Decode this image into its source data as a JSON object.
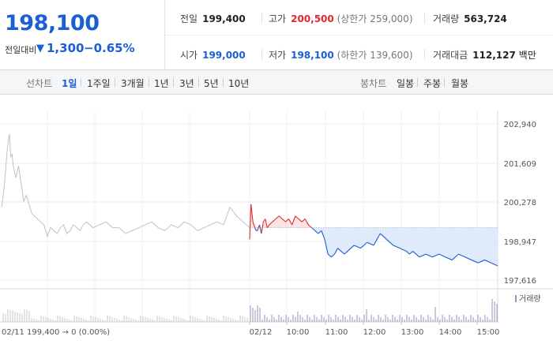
{
  "summary": {
    "price": "198,100",
    "change_label": "전일대비",
    "change_arrow": "▼",
    "change_value": "1,300",
    "change_rate": "−0.65%"
  },
  "stats": {
    "prev_close": {
      "label": "전일",
      "value": "199,400"
    },
    "high": {
      "label": "고가",
      "value": "200,500",
      "sub": "(상한가 259,000)"
    },
    "volume": {
      "label": "거래량",
      "value": "563,724"
    },
    "open": {
      "label": "시가",
      "value": "199,000"
    },
    "low": {
      "label": "저가",
      "value": "198,100",
      "sub": "(하한가 139,600)"
    },
    "amount": {
      "label": "거래대금",
      "value": "112,127",
      "unit": "백만"
    }
  },
  "line_tabs": {
    "label": "선차트",
    "items": [
      "1일",
      "1주일",
      "3개월",
      "1년",
      "3년",
      "5년",
      "10년"
    ],
    "active": "1일"
  },
  "candle_tabs": {
    "label": "봉차트",
    "items": [
      "일봉",
      "주봉",
      "월봉"
    ]
  },
  "colors": {
    "up": "#e2282e",
    "down": "#1b5fd6",
    "prev_day": "#c2c2c2",
    "volume": "#9a93b8"
  },
  "chart_data": {
    "type": "line",
    "y_ticks": [
      "202,940",
      "201,609",
      "200,278",
      "198,947",
      "197,616"
    ],
    "ylim": [
      197616,
      202940
    ],
    "reference_price": 199400,
    "prev_day_label": "02/11  199,400 → 0 (0.00%)",
    "x_ticks": [
      "02/12",
      "10:00",
      "11:00",
      "12:00",
      "13:00",
      "14:00",
      "15:00"
    ],
    "volume_legend": "거래량",
    "series": [
      {
        "segment": "prev_day",
        "x": [
          "09:00",
          "09:02",
          "09:04",
          "09:06",
          "09:08",
          "09:10",
          "09:12",
          "09:14",
          "09:16",
          "09:18",
          "09:20",
          "09:22",
          "09:24",
          "09:26",
          "09:30",
          "09:34",
          "09:38",
          "09:42",
          "09:46",
          "09:50",
          "09:55",
          "10:00",
          "10:05",
          "10:10",
          "10:15",
          "10:20",
          "10:25",
          "10:30",
          "10:35",
          "10:40",
          "10:45",
          "10:50",
          "10:55",
          "11:00",
          "11:05",
          "11:10",
          "11:20",
          "11:30",
          "11:40",
          "11:50",
          "12:00",
          "12:10",
          "12:20",
          "12:30",
          "12:40",
          "12:50",
          "13:00",
          "13:10",
          "13:20",
          "13:30",
          "13:40",
          "13:50",
          "14:00",
          "14:10",
          "14:20",
          "14:30",
          "14:40",
          "14:50",
          "15:00",
          "15:10",
          "15:20"
        ],
        "y": [
          200100,
          200400,
          200800,
          201300,
          201900,
          202300,
          202600,
          201800,
          201900,
          201500,
          201300,
          201100,
          201300,
          201500,
          200900,
          200300,
          200500,
          200200,
          199900,
          199800,
          199700,
          199600,
          199500,
          199100,
          199400,
          199300,
          199200,
          199400,
          199500,
          199200,
          199300,
          199500,
          199400,
          199300,
          199500,
          199600,
          199400,
          199500,
          199600,
          199400,
          199400,
          199200,
          199300,
          199400,
          199500,
          199600,
          199400,
          199300,
          199500,
          199400,
          199600,
          199500,
          199300,
          199400,
          199500,
          199600,
          199500,
          200100,
          199800,
          199600,
          199400
        ]
      },
      {
        "segment": "today",
        "x": [
          "09:00",
          "09:02",
          "09:05",
          "09:08",
          "09:10",
          "09:12",
          "09:15",
          "09:18",
          "09:21",
          "09:24",
          "09:27",
          "09:30",
          "09:35",
          "09:40",
          "09:45",
          "09:50",
          "09:55",
          "10:00",
          "10:05",
          "10:10",
          "10:15",
          "10:20",
          "10:25",
          "10:30",
          "10:35",
          "10:40",
          "10:45",
          "10:50",
          "10:55",
          "11:00",
          "11:05",
          "11:10",
          "11:15",
          "11:20",
          "11:25",
          "11:30",
          "11:40",
          "11:50",
          "12:00",
          "12:10",
          "12:20",
          "12:30",
          "12:40",
          "12:50",
          "13:00",
          "13:05",
          "13:10",
          "13:20",
          "13:30",
          "13:40",
          "13:50",
          "14:00",
          "14:10",
          "14:20",
          "14:30",
          "14:40",
          "14:50",
          "15:00",
          "15:10",
          "15:20"
        ],
        "y": [
          199000,
          200200,
          199600,
          199400,
          199300,
          199300,
          199500,
          199200,
          199600,
          199700,
          199400,
          199500,
          199600,
          199700,
          199800,
          199700,
          199600,
          199700,
          199500,
          199800,
          199700,
          199600,
          199700,
          199500,
          199400,
          199300,
          199200,
          199300,
          199000,
          198500,
          198400,
          198500,
          198700,
          198600,
          198500,
          198600,
          198800,
          198700,
          198900,
          198800,
          199200,
          199000,
          198800,
          198700,
          198600,
          198500,
          198600,
          198400,
          198500,
          198400,
          198500,
          198400,
          198300,
          198500,
          198400,
          198300,
          198200,
          198300,
          198200,
          198100
        ]
      }
    ]
  }
}
